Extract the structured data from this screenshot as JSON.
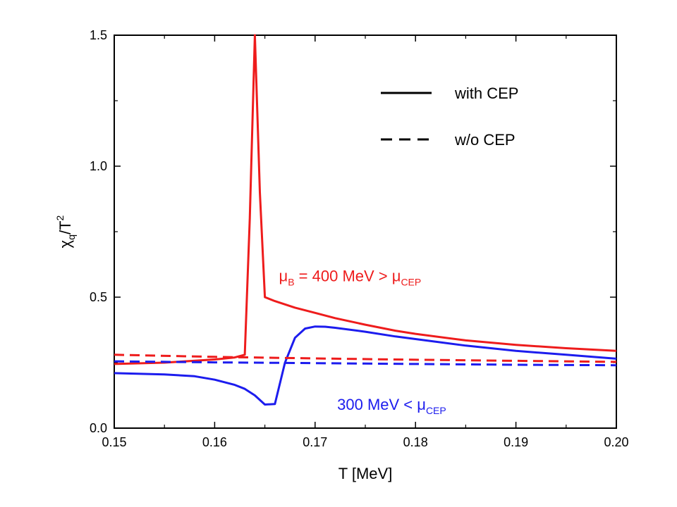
{
  "chart_data": {
    "type": "line",
    "title": "",
    "xlabel": "T [MeV]",
    "ylabel_main": "χ",
    "ylabel_sub": "q",
    "ylabel_mid": "/T",
    "ylabel_sup": "2",
    "xlim": [
      0.15,
      0.2
    ],
    "ylim": [
      0.0,
      1.5
    ],
    "xticks": [
      0.15,
      0.16,
      0.17,
      0.18,
      0.19,
      0.2
    ],
    "xtick_labels": [
      "0.15",
      "0.16",
      "0.17",
      "0.18",
      "0.19",
      "0.20"
    ],
    "yticks": [
      0.0,
      0.5,
      1.0,
      1.5
    ],
    "ytick_labels": [
      "0.0",
      "0.5",
      "1.0",
      "1.5"
    ],
    "grid": false,
    "legend": {
      "placement": "top-right",
      "entries": [
        {
          "label": "with CEP",
          "style": "solid"
        },
        {
          "label": "w/o CEP",
          "style": "dashed"
        }
      ]
    },
    "annotations": [
      {
        "text": "μ",
        "sub1": "B",
        "mid": " = 400 MeV > μ",
        "sub2": "CEP",
        "color": "#ee1c1c",
        "x": 0.1664,
        "y": 0.56
      },
      {
        "text": "300 MeV < μ",
        "sub1": "CEP",
        "color": "#1c1cee",
        "x": 0.1722,
        "y": 0.07
      }
    ],
    "series": [
      {
        "color": "#ee1c1c",
        "style": "solid",
        "x": [
          0.15,
          0.155,
          0.16,
          0.162,
          0.163,
          0.1635,
          0.164,
          0.1645,
          0.165,
          0.166,
          0.168,
          0.17,
          0.172,
          0.175,
          0.178,
          0.18,
          0.185,
          0.19,
          0.195,
          0.2
        ],
        "y": [
          0.245,
          0.25,
          0.262,
          0.27,
          0.28,
          0.8,
          1.5,
          0.9,
          0.5,
          0.485,
          0.46,
          0.44,
          0.42,
          0.395,
          0.372,
          0.36,
          0.335,
          0.318,
          0.305,
          0.295
        ]
      },
      {
        "color": "#1c1cee",
        "style": "solid",
        "x": [
          0.15,
          0.155,
          0.158,
          0.16,
          0.162,
          0.163,
          0.164,
          0.165,
          0.166,
          0.167,
          0.168,
          0.169,
          0.17,
          0.171,
          0.172,
          0.175,
          0.178,
          0.18,
          0.185,
          0.19,
          0.195,
          0.2
        ],
        "y": [
          0.21,
          0.205,
          0.198,
          0.185,
          0.165,
          0.15,
          0.125,
          0.09,
          0.092,
          0.25,
          0.345,
          0.38,
          0.388,
          0.387,
          0.383,
          0.368,
          0.35,
          0.34,
          0.315,
          0.295,
          0.28,
          0.265
        ]
      },
      {
        "color": "#ee1c1c",
        "style": "dashed",
        "x": [
          0.15,
          0.16,
          0.17,
          0.18,
          0.19,
          0.2
        ],
        "y": [
          0.28,
          0.272,
          0.266,
          0.261,
          0.257,
          0.253
        ]
      },
      {
        "color": "#1c1cee",
        "style": "dashed",
        "x": [
          0.15,
          0.16,
          0.17,
          0.18,
          0.19,
          0.2
        ],
        "y": [
          0.255,
          0.251,
          0.248,
          0.245,
          0.242,
          0.24
        ]
      }
    ]
  }
}
